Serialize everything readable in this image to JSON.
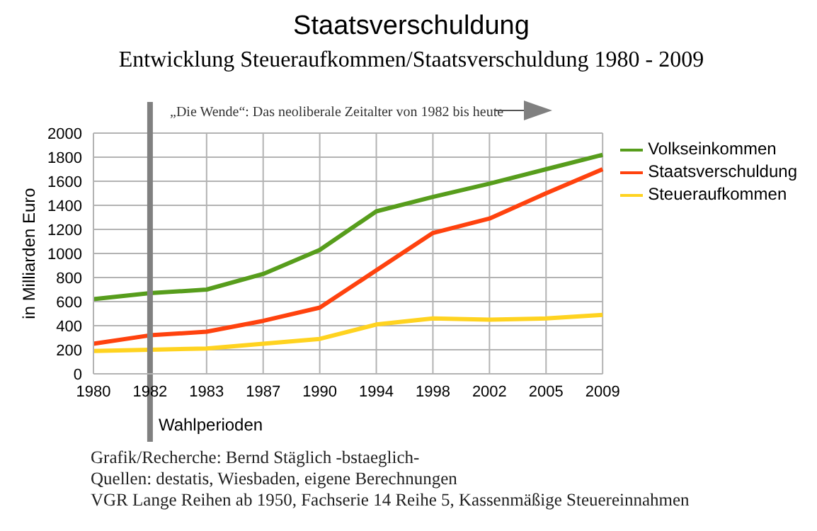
{
  "chart_data": {
    "type": "line",
    "title": "Staatsverschuldung",
    "subtitle": "Entwicklung Steueraufkommen/Staatsverschuldung 1980 - 2009",
    "ylabel": "in Milliarden Euro",
    "categories": [
      "1980",
      "1982",
      "1983",
      "1987",
      "1990",
      "1994",
      "1998",
      "2002",
      "2005",
      "2009"
    ],
    "series": [
      {
        "name": "Volkseinkommen",
        "color": "#579d1c",
        "values": [
          620,
          670,
          700,
          830,
          1030,
          1350,
          1470,
          1580,
          1700,
          1820
        ]
      },
      {
        "name": "Staatsverschuldung",
        "color": "#ff420e",
        "values": [
          250,
          320,
          350,
          440,
          550,
          860,
          1170,
          1290,
          1500,
          1700
        ]
      },
      {
        "name": "Steueraufkommen",
        "color": "#ffd320",
        "values": [
          190,
          200,
          210,
          250,
          290,
          410,
          460,
          450,
          460,
          490
        ]
      }
    ],
    "ylim": [
      0,
      2000
    ],
    "yticks": [
      0,
      200,
      400,
      600,
      800,
      1000,
      1200,
      1400,
      1600,
      1800,
      2000
    ],
    "grid": true,
    "legend": "right",
    "marker": "none",
    "line_style": "solid",
    "ref_lines": [
      {
        "axis": "x",
        "value": "1982",
        "label": "Wahlperioden",
        "color": "#808080"
      }
    ],
    "annotations": [
      "„Die Wende“: Das neoliberale Zeitalter von 1982 bis heute",
      "Grafik/Recherche: Bernd Stäglich -bstaeglich-",
      "Quellen: destatis, Wiesbaden, eigene Berechnungen",
      "VGR Lange Reihen ab 1950, Fachserie 14 Reihe 5, Kassenmäßige Steuereinnahmen"
    ]
  }
}
